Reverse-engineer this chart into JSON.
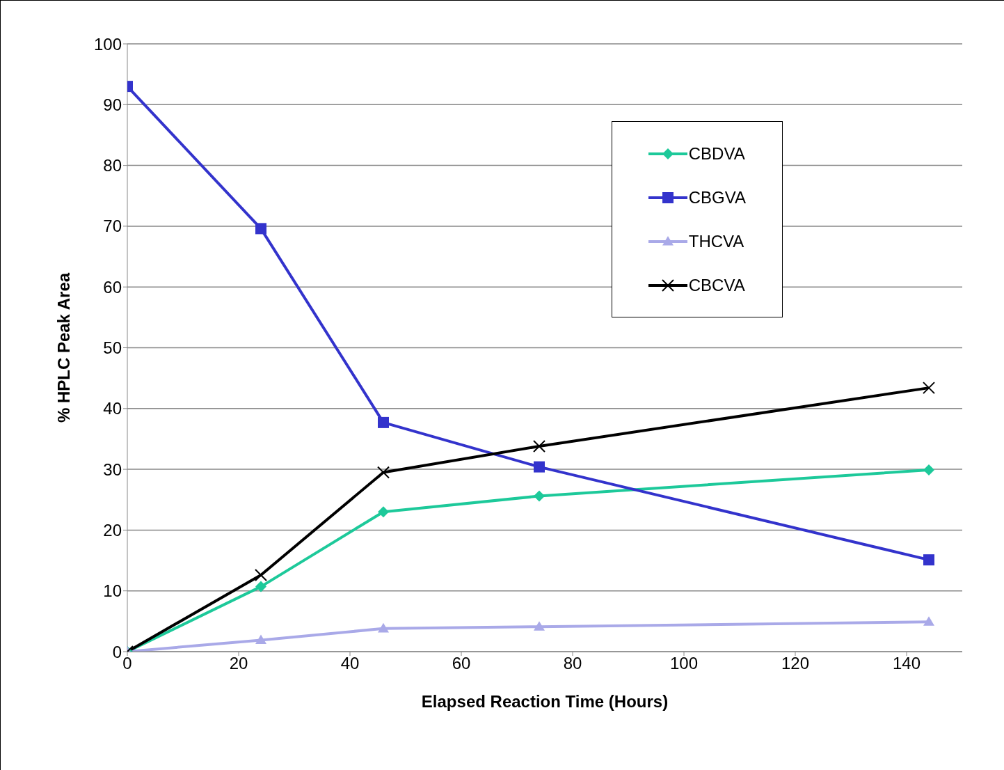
{
  "chart_data": {
    "type": "line",
    "xlabel": "Elapsed Reaction Time (Hours)",
    "ylabel": "% HPLC Peak Area",
    "x": [
      0,
      24,
      46,
      74,
      144
    ],
    "series": [
      {
        "name": "CBDVA",
        "color": "#1dc99a",
        "marker": "diamond",
        "values": [
          0,
          10.7,
          23.0,
          25.6,
          29.9
        ]
      },
      {
        "name": "CBGVA",
        "color": "#3333cc",
        "marker": "square",
        "values": [
          93.0,
          69.6,
          37.7,
          30.4,
          15.1
        ]
      },
      {
        "name": "THCVA",
        "color": "#a9a9e8",
        "marker": "triangle",
        "values": [
          0,
          1.9,
          3.8,
          4.1,
          4.9
        ]
      },
      {
        "name": "CBCVA",
        "color": "#000000",
        "marker": "cross",
        "values": [
          0,
          12.6,
          29.5,
          33.8,
          43.4
        ]
      }
    ],
    "xlim": [
      0,
      150
    ],
    "xticks": [
      0,
      20,
      40,
      60,
      80,
      100,
      120,
      140
    ],
    "ylim": [
      0,
      100
    ],
    "yticks": [
      0,
      10,
      20,
      30,
      40,
      50,
      60,
      70,
      80,
      90,
      100
    ],
    "grid": "y",
    "legend": "top right"
  }
}
